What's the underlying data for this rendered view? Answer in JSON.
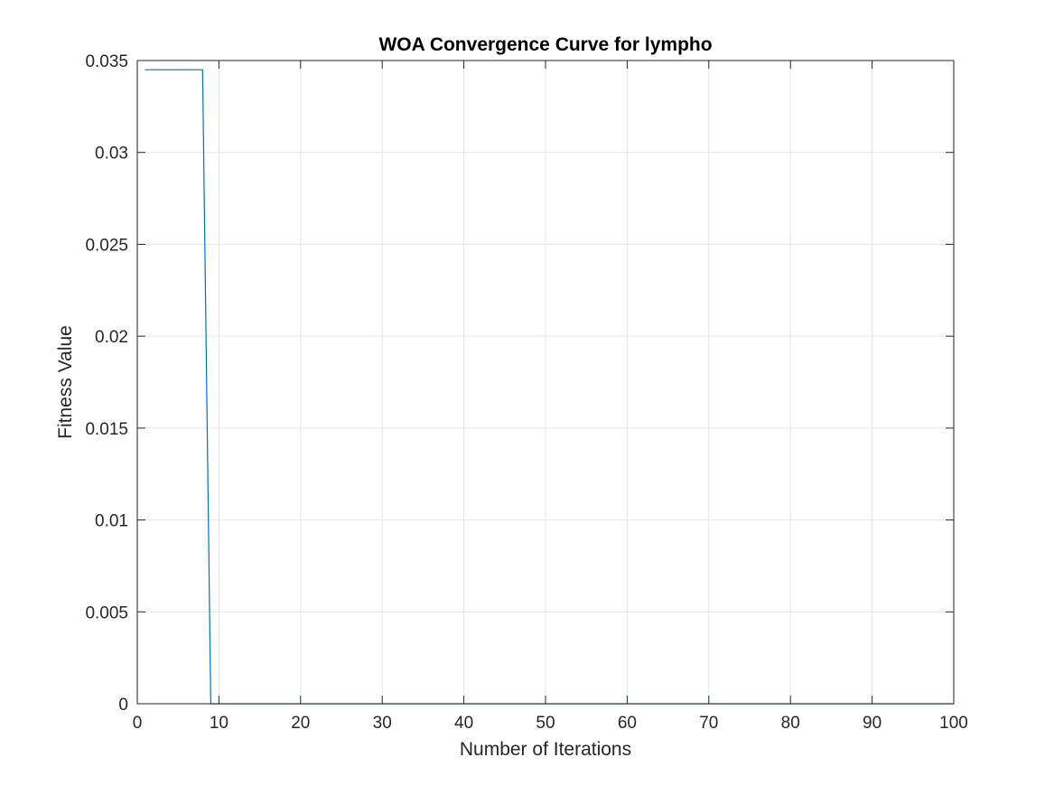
{
  "chart_data": {
    "type": "line",
    "title": "WOA Convergence Curve for lympho",
    "xlabel": "Number of Iterations",
    "ylabel": "Fitness Value",
    "xlim": [
      0,
      100
    ],
    "ylim": [
      0,
      0.035
    ],
    "xticks": [
      0,
      10,
      20,
      30,
      40,
      50,
      60,
      70,
      80,
      90,
      100
    ],
    "xtick_labels": [
      "0",
      "10",
      "20",
      "30",
      "40",
      "50",
      "60",
      "70",
      "80",
      "90",
      "100"
    ],
    "yticks": [
      0,
      0.005,
      0.01,
      0.015,
      0.02,
      0.025,
      0.03,
      0.035
    ],
    "ytick_labels": [
      "0",
      "0.005",
      "0.01",
      "0.015",
      "0.02",
      "0.025",
      "0.03",
      "0.035"
    ],
    "grid": true,
    "series_color": "#0072BD",
    "series": [
      {
        "x": [
          1,
          2,
          3,
          4,
          5,
          6,
          7,
          8,
          9,
          10,
          11,
          12,
          13,
          14,
          15,
          16,
          17,
          18,
          19,
          20,
          21,
          22,
          23,
          24,
          25,
          26,
          27,
          28,
          29,
          30,
          31,
          32,
          33,
          34,
          35,
          36,
          37,
          38,
          39,
          40,
          41,
          42,
          43,
          44,
          45,
          46,
          47,
          48,
          49,
          50,
          51,
          52,
          53,
          54,
          55,
          56,
          57,
          58,
          59,
          60,
          61,
          62,
          63,
          64,
          65,
          66,
          67,
          68,
          69,
          70,
          71,
          72,
          73,
          74,
          75,
          76,
          77,
          78,
          79,
          80,
          81,
          82,
          83,
          84,
          85,
          86,
          87,
          88,
          89,
          90,
          91,
          92,
          93,
          94,
          95,
          96,
          97,
          98,
          99,
          100
        ],
        "y": [
          0.0345,
          0.0345,
          0.0345,
          0.0345,
          0.0345,
          0.0345,
          0.0345,
          0.0345,
          0,
          0,
          0,
          0,
          0,
          0,
          0,
          0,
          0,
          0,
          0,
          0,
          0,
          0,
          0,
          0,
          0,
          0,
          0,
          0,
          0,
          0,
          0,
          0,
          0,
          0,
          0,
          0,
          0,
          0,
          0,
          0,
          0,
          0,
          0,
          0,
          0,
          0,
          0,
          0,
          0,
          0,
          0,
          0,
          0,
          0,
          0,
          0,
          0,
          0,
          0,
          0,
          0,
          0,
          0,
          0,
          0,
          0,
          0,
          0,
          0,
          0,
          0,
          0,
          0,
          0,
          0,
          0,
          0,
          0,
          0,
          0,
          0,
          0,
          0,
          0,
          0,
          0,
          0,
          0,
          0,
          0,
          0,
          0,
          0,
          0,
          0,
          0,
          0,
          0,
          0,
          0
        ]
      }
    ]
  }
}
